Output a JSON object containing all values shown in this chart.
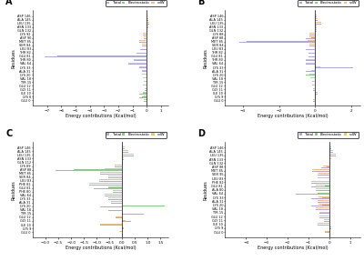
{
  "panels": [
    {
      "label": "A",
      "residues": [
        "ASP 146",
        "ALA 145",
        "LEU 135",
        "ASN 133",
        "GLN 132",
        "LYS 92",
        "ASP 90",
        "MET 85",
        "SER 84",
        "LEU 83",
        "THR 82",
        "GLU 81",
        "THR 80",
        "VAL 64",
        "LYS 33",
        "ALA 31",
        "LYS 20",
        "VAL 18",
        "TYR 15",
        "GLU 12",
        "GLY 11",
        "ILE 10",
        "LYS 8",
        "GLU 0"
      ],
      "total": [
        0.05,
        0.1,
        0.2,
        0.1,
        0.05,
        -0.3,
        -0.2,
        -0.5,
        -0.35,
        -0.45,
        -0.7,
        -7.2,
        -0.9,
        -1.3,
        -0.5,
        -0.35,
        -0.35,
        -0.25,
        -0.2,
        -0.3,
        -0.15,
        -0.5,
        -0.55,
        -0.2
      ],
      "electrostatic": [
        0.0,
        0.0,
        0.0,
        0.0,
        0.0,
        0.0,
        0.0,
        0.0,
        0.0,
        0.0,
        0.0,
        -6.3,
        0.0,
        0.0,
        0.0,
        0.0,
        0.0,
        0.0,
        0.0,
        0.0,
        0.0,
        -0.25,
        -0.35,
        0.0
      ],
      "vdw": [
        0.05,
        0.1,
        0.2,
        0.1,
        0.05,
        -0.3,
        -0.2,
        -0.5,
        -0.35,
        -0.45,
        -0.7,
        -0.85,
        -0.9,
        -1.3,
        -0.5,
        -0.35,
        -0.35,
        -0.25,
        -0.2,
        -0.3,
        -0.15,
        -0.25,
        -0.2,
        -0.2
      ],
      "xlim": [
        -8,
        1.5
      ],
      "xticks": [
        -7,
        -6,
        -5,
        -4,
        -3,
        -2,
        -1,
        0,
        1
      ]
    },
    {
      "label": "B",
      "residues": [
        "ASP 146",
        "ALA 145",
        "LEU 135",
        "ASN 133",
        "GLN 132",
        "LYS 88",
        "ASP 88",
        "MET 85",
        "SER 84",
        "LEU 83",
        "THR 82",
        "GLU 81",
        "THR 80",
        "VAL 64",
        "LYS 33",
        "ALA 31",
        "LYS 20",
        "VAL 18",
        "TYR 15",
        "GLU 12",
        "GLY 11",
        "ILE 10",
        "LYS 9",
        "GLU 0"
      ],
      "total": [
        0.1,
        0.15,
        0.35,
        0.1,
        0.08,
        -0.3,
        -0.5,
        -4.2,
        -0.3,
        -0.55,
        -0.35,
        -0.35,
        -0.55,
        -0.55,
        2.1,
        -0.5,
        -0.85,
        -0.25,
        -0.15,
        -0.15,
        -0.1,
        0.12,
        0.05,
        -0.12
      ],
      "electrostatic": [
        0.0,
        0.0,
        0.0,
        0.0,
        0.0,
        0.0,
        -0.2,
        -3.8,
        0.0,
        0.0,
        0.0,
        0.0,
        0.0,
        0.0,
        1.8,
        -0.3,
        -0.55,
        0.0,
        0.0,
        0.0,
        0.0,
        0.0,
        0.0,
        0.0
      ],
      "vdw": [
        0.1,
        0.15,
        0.35,
        0.1,
        0.08,
        -0.3,
        -0.3,
        -0.4,
        -0.3,
        -0.55,
        -0.35,
        -0.35,
        -0.55,
        -0.55,
        0.3,
        -0.2,
        -0.3,
        -0.25,
        -0.15,
        -0.15,
        -0.1,
        0.12,
        0.05,
        -0.12
      ],
      "xlim": [
        -5,
        2.5
      ],
      "xticks": [
        -4,
        -2,
        0,
        2
      ]
    },
    {
      "label": "C",
      "residues": [
        "ASP 146",
        "ALA 145",
        "LEU 135",
        "ASN 133",
        "GLN 112",
        "LYS 89",
        "ASP 88",
        "MET 85",
        "SER 84",
        "LEU 83",
        "PHE 82",
        "GLU 81",
        "PHE 80",
        "VAL 64",
        "LYS 33",
        "ALA 31",
        "LYS 20",
        "VAL 18",
        "TYR 15",
        "GLU 12",
        "GLY 11",
        "ILE 10",
        "LYS 9",
        "GLU 0"
      ],
      "total": [
        0.1,
        0.25,
        0.45,
        0.05,
        0.02,
        -0.3,
        -2.6,
        -0.85,
        -0.55,
        -0.9,
        -1.3,
        -1.1,
        -0.35,
        -0.7,
        -0.55,
        -0.45,
        -0.85,
        -0.55,
        0.85,
        -0.25,
        0.35,
        -0.85,
        0.05,
        -0.12
      ],
      "electrostatic": [
        0.0,
        0.0,
        0.0,
        0.0,
        0.0,
        0.0,
        -1.9,
        0.0,
        0.0,
        0.0,
        0.0,
        -0.55,
        0.0,
        0.0,
        0.0,
        0.0,
        1.65,
        0.0,
        0.0,
        0.0,
        0.2,
        0.0,
        0.0,
        0.0
      ],
      "vdw": [
        0.1,
        0.25,
        0.45,
        0.05,
        0.02,
        -0.3,
        -0.7,
        -0.85,
        -0.55,
        -0.9,
        -1.3,
        -0.55,
        -0.35,
        -0.7,
        -0.55,
        -0.45,
        -0.85,
        -0.55,
        0.85,
        -0.25,
        0.15,
        -0.85,
        0.05,
        -0.12
      ],
      "xlim": [
        -3.5,
        1.8
      ],
      "xticks": [
        -3.0,
        -2.5,
        -2.0,
        -1.5,
        -1.0,
        -0.5,
        0.0,
        0.5,
        1.0,
        1.5
      ]
    },
    {
      "label": "D",
      "residues": [
        "ASP 146",
        "ALA 145",
        "LEU 135",
        "ASN 133",
        "GLN 132",
        "ASP 98",
        "MET 85",
        "SER 95",
        "LEU 83",
        "PHE 82",
        "GLU 81",
        "ALA 80",
        "VAL 64",
        "LYS 33",
        "ALA 31",
        "LYS 20",
        "VAL 18",
        "TYR 15",
        "GLU 12",
        "GLY 11",
        "ILE 10",
        "LYS 9",
        "GLU 0"
      ],
      "total": [
        0.1,
        0.2,
        0.3,
        0.1,
        0.05,
        -0.4,
        -0.8,
        -0.55,
        -0.55,
        -0.85,
        -0.85,
        -0.65,
        -1.6,
        -0.85,
        -0.55,
        -0.85,
        -0.65,
        -0.45,
        -0.45,
        -0.25,
        -0.55,
        0.1,
        -0.22
      ],
      "electrostatic": [
        0.0,
        0.0,
        0.0,
        0.0,
        0.0,
        -0.1,
        0.0,
        0.0,
        0.0,
        0.0,
        -0.2,
        0.0,
        -0.55,
        -0.35,
        0.0,
        -0.35,
        0.0,
        0.0,
        0.0,
        0.0,
        0.0,
        0.0,
        0.0
      ],
      "vdw": [
        0.1,
        0.2,
        0.3,
        0.1,
        0.05,
        -0.3,
        -0.8,
        -0.55,
        -0.55,
        -0.85,
        -0.65,
        -0.65,
        -1.05,
        -0.5,
        -0.55,
        -0.5,
        -0.65,
        -0.45,
        -0.45,
        -0.25,
        -0.55,
        0.1,
        -0.22
      ],
      "xlim": [
        -5,
        1.5
      ],
      "xticks": [
        -4,
        -3,
        -2,
        -1,
        0,
        1
      ]
    }
  ],
  "color_total": "#b0a8d8",
  "color_electrostatic": "#85cc85",
  "color_vdw": "#f0c080",
  "bar_height": 0.22,
  "xlabel": "Energy contributions (Kcal/mol)",
  "ylabel": "Residues",
  "bg_color": "#ffffff"
}
